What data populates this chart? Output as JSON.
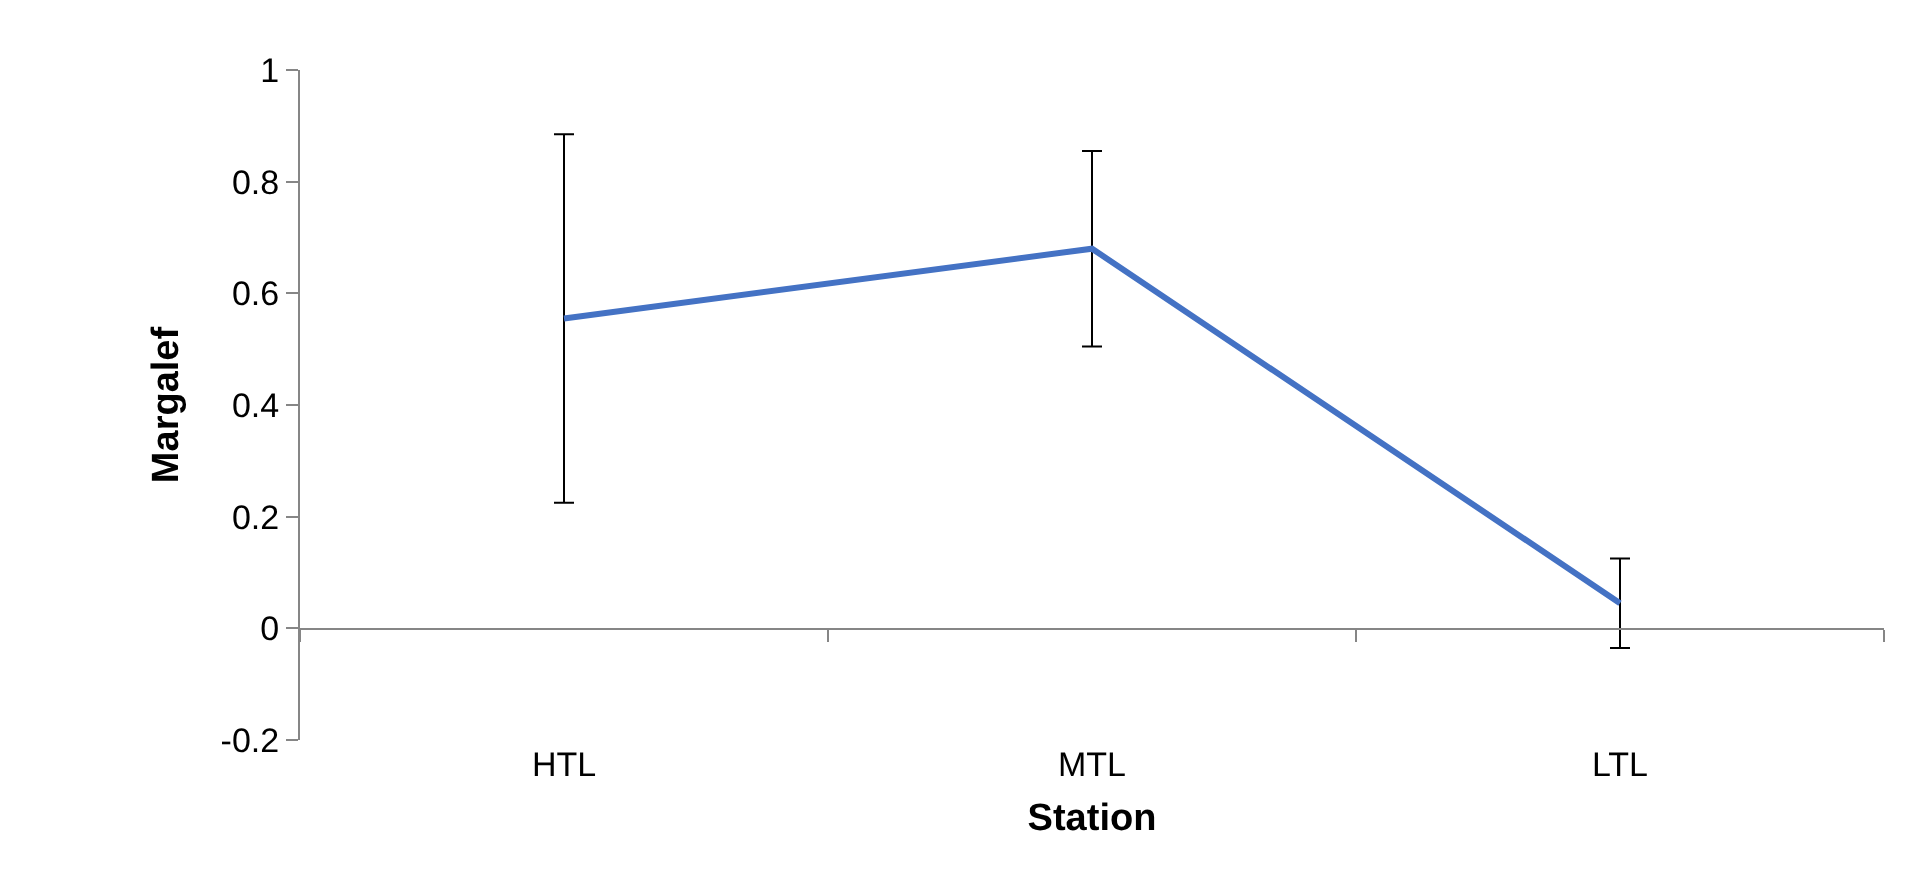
{
  "chart_data": {
    "type": "line",
    "xlabel": "Station",
    "ylabel": "Margalef",
    "categories": [
      "HTL",
      "MTL",
      "LTL"
    ],
    "series": [
      {
        "color": "#4472c4",
        "values": [
          0.555,
          0.68,
          0.045
        ],
        "errors": [
          0.33,
          0.175,
          0.08
        ]
      }
    ],
    "ylim": [
      -0.2,
      1
    ],
    "yticks": [
      -0.2,
      0,
      0.2,
      0.4,
      0.6,
      0.8,
      1
    ],
    "marker": "none",
    "line_style": "solid"
  }
}
